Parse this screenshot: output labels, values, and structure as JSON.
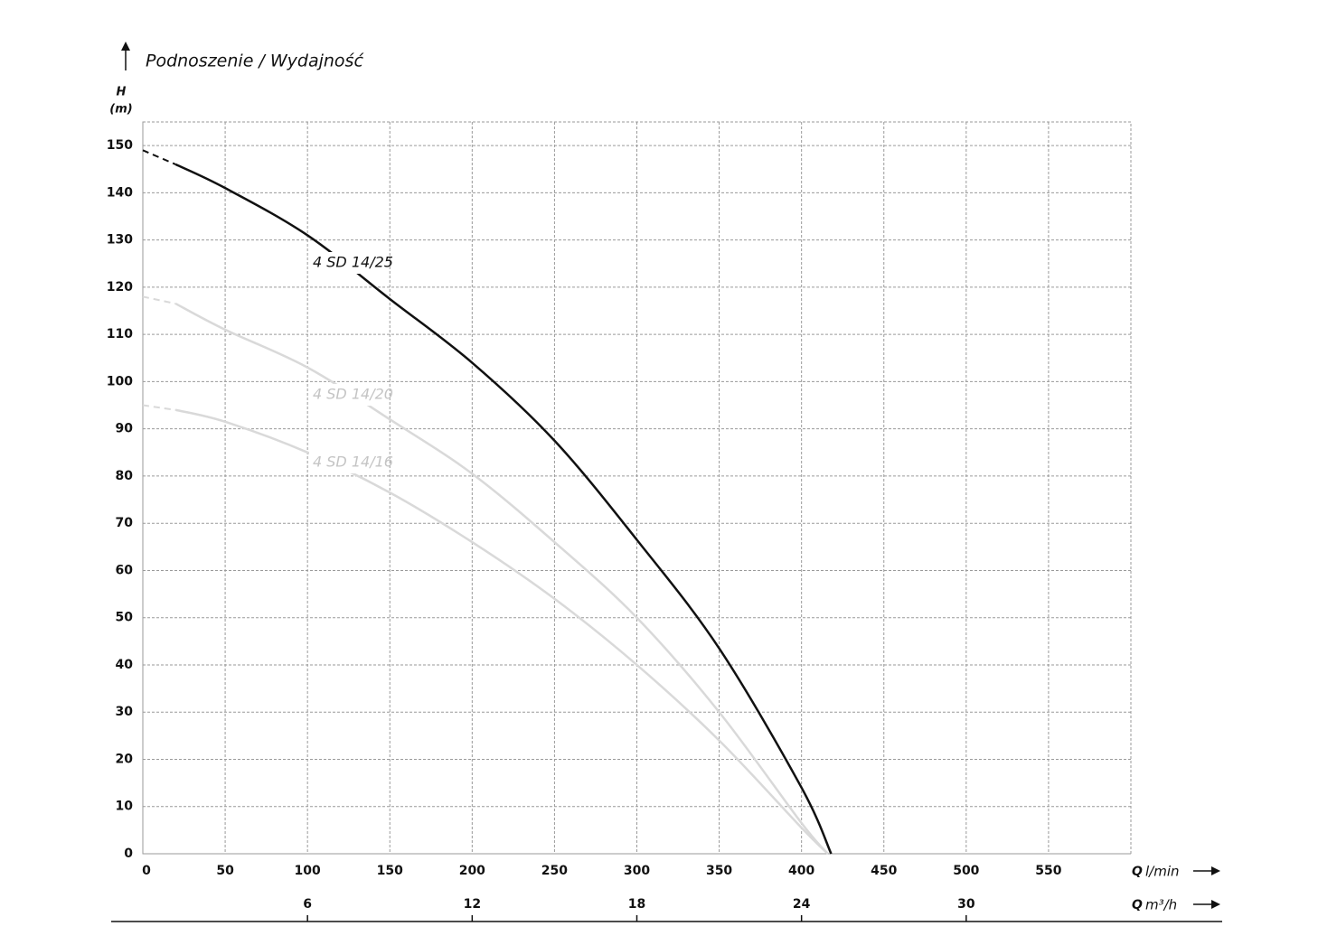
{
  "chart_data": {
    "type": "line",
    "title": "Podnoszenie / Wydajność",
    "y_label": {
      "symbol": "H",
      "unit": "(m)"
    },
    "x_label": {
      "symbol": "Q",
      "unit": "l/min"
    },
    "x2_label": {
      "symbol": "Q",
      "unit": "m³/h"
    },
    "xlim": [
      0,
      600
    ],
    "xticks": [
      0,
      50,
      100,
      150,
      200,
      250,
      300,
      350,
      400,
      450,
      500,
      550
    ],
    "x2lim": [
      0,
      36
    ],
    "x2ticks": [
      6,
      12,
      18,
      24,
      30
    ],
    "ylim": [
      0,
      155
    ],
    "yticks": [
      0,
      10,
      20,
      30,
      40,
      50,
      60,
      70,
      80,
      90,
      100,
      110,
      120,
      130,
      140,
      150
    ],
    "grid": true,
    "series": [
      {
        "name": "4 SD 14/25",
        "color": "#111111",
        "label_color": "#111111",
        "dashed_segments": 1,
        "x": [
          0,
          20,
          50,
          100,
          150,
          200,
          250,
          300,
          350,
          400,
          418
        ],
        "values": [
          149,
          146,
          141,
          131,
          117.5,
          104,
          87.5,
          66.5,
          43.5,
          14,
          0
        ]
      },
      {
        "name": "4 SD 14/20",
        "color": "#d9d9d9",
        "label_color": "#c4c4c4",
        "dashed_segments": 1,
        "x": [
          0,
          20,
          50,
          100,
          150,
          200,
          250,
          300,
          350,
          400,
          416
        ],
        "values": [
          118,
          116.5,
          111,
          103,
          92,
          80.5,
          66,
          50,
          30,
          6.5,
          0
        ]
      },
      {
        "name": "4 SD 14/16",
        "color": "#d9d9d9",
        "label_color": "#c4c4c4",
        "dashed_segments": 1,
        "x": [
          0,
          20,
          50,
          100,
          150,
          200,
          250,
          300,
          350,
          400,
          416
        ],
        "values": [
          95,
          94,
          91.5,
          85,
          76.5,
          66,
          54,
          40,
          24,
          5.5,
          0
        ]
      }
    ]
  }
}
